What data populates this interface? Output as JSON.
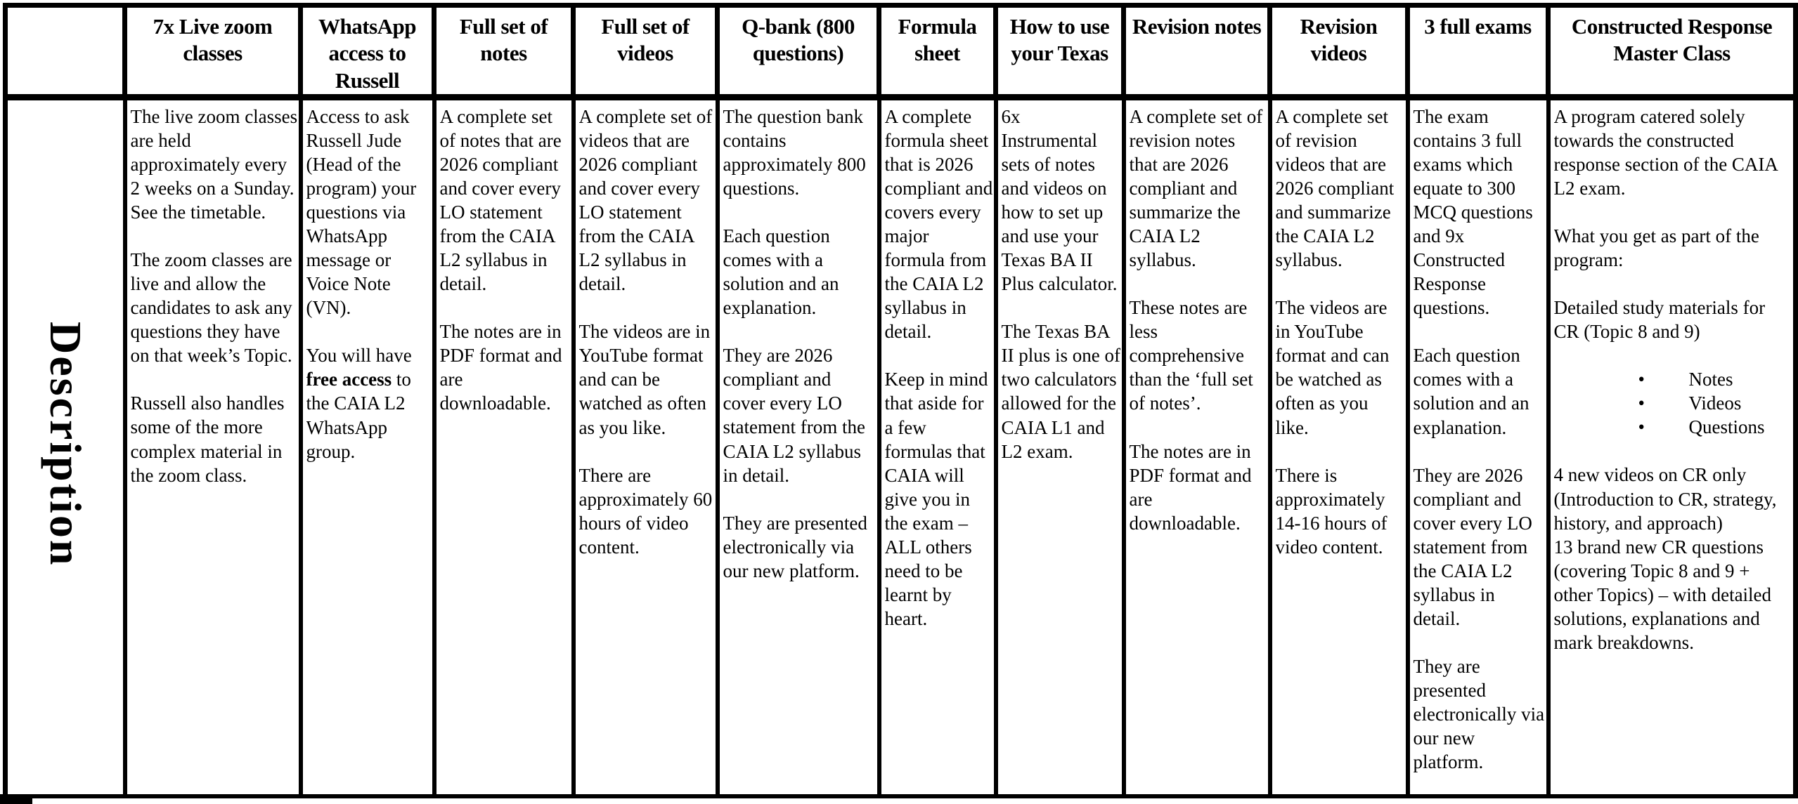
{
  "table": {
    "row_label": "Description",
    "columns": [
      {
        "header": "7x Live zoom classes",
        "blocks": [
          {
            "text": "The live zoom classes are held approximately every 2 weeks on a Sunday. See the timetable."
          },
          {
            "text": "The zoom classes are live and allow the candidates to ask any questions they have on that week’s Topic."
          },
          {
            "text": "Russell also handles some of the more complex material in the zoom class."
          }
        ]
      },
      {
        "header": "WhatsApp access to Russell",
        "blocks": [
          {
            "text": "Access to ask Russell Jude (Head of the program) your questions via WhatsApp message or Voice Note (VN)."
          },
          {
            "text": "You will have **free access** to the CAIA L2 WhatsApp group."
          }
        ]
      },
      {
        "header": "Full set of notes",
        "blocks": [
          {
            "text": "A complete set of notes that are 2026 compliant and cover every LO statement from the CAIA L2 syllabus in detail."
          },
          {
            "text": "The notes are in PDF format and are downloadable."
          }
        ]
      },
      {
        "header": "Full set of videos",
        "blocks": [
          {
            "text": "A complete set of videos that are 2026 compliant and cover every LO statement from the CAIA L2 syllabus in detail."
          },
          {
            "text": "The videos are in YouTube format and can be watched as often as you like."
          },
          {
            "text": "There are approximately 60 hours of video content."
          }
        ]
      },
      {
        "header": "Q-bank (800 questions)",
        "blocks": [
          {
            "text": "The question bank contains approximately 800 questions."
          },
          {
            "text": "Each question comes with a solution and an explanation."
          },
          {
            "text": "They are 2026 compliant and cover every LO statement from the CAIA L2 syllabus in detail."
          },
          {
            "text": "They are presented electronically via our new platform."
          }
        ]
      },
      {
        "header": "Formula sheet",
        "blocks": [
          {
            "text": "A complete formula sheet that is 2026 compliant and covers every major formula from the CAIA L2 syllabus in detail."
          },
          {
            "text": "Keep in mind that aside for a few formulas that CAIA will give you in the exam – ALL others need to be learnt by heart."
          }
        ]
      },
      {
        "header": "How to use your Texas",
        "blocks": [
          {
            "text": "6x Instrumental sets of notes and videos on how to set up and use your Texas BA II Plus calculator."
          },
          {
            "text": "The Texas BA II plus is one of two calculators allowed for the CAIA L1 and L2 exam."
          }
        ]
      },
      {
        "header": "Revision notes",
        "blocks": [
          {
            "text": "A complete set of revision notes that are 2026 compliant and summarize the CAIA L2 syllabus."
          },
          {
            "text": "These notes are less comprehensive than the ‘full set of notes’."
          },
          {
            "text": "The notes are in PDF format and are downloadable."
          }
        ]
      },
      {
        "header": "Revision videos",
        "blocks": [
          {
            "text": "A complete set of revision videos that are 2026 compliant and summarize the CAIA L2 syllabus."
          },
          {
            "text": "The videos are in YouTube format and can be watched as often as you like."
          },
          {
            "text": "There is approximately 14-16 hours of video content."
          }
        ]
      },
      {
        "header": "3 full exams",
        "blocks": [
          {
            "text": "The exam contains 3 full exams which equate to 300 MCQ questions and 9x Constructed Response questions."
          },
          {
            "text": "Each question comes with a solution and an explanation."
          },
          {
            "text": "They are 2026 compliant and cover every LO statement from the CAIA L2 syllabus in detail."
          },
          {
            "text": "They are presented electronically via our new platform."
          }
        ]
      },
      {
        "header": "Constructed Response Master Class",
        "blocks": [
          {
            "text": "A program catered solely towards the constructed response section of the CAIA L2 exam."
          },
          {
            "text": "What you get as part of the program:"
          },
          {
            "text": "Detailed study materials for CR (Topic 8 and 9)"
          },
          {
            "items": [
              "Notes",
              "Videos",
              "Questions"
            ]
          },
          {
            "text": "4 new videos on CR only (Introduction to CR, strategy, history, and approach)\n13 brand new CR questions (covering Topic 8 and 9 + other Topics) – with detailed solutions, explanations and mark breakdowns."
          }
        ]
      }
    ]
  }
}
